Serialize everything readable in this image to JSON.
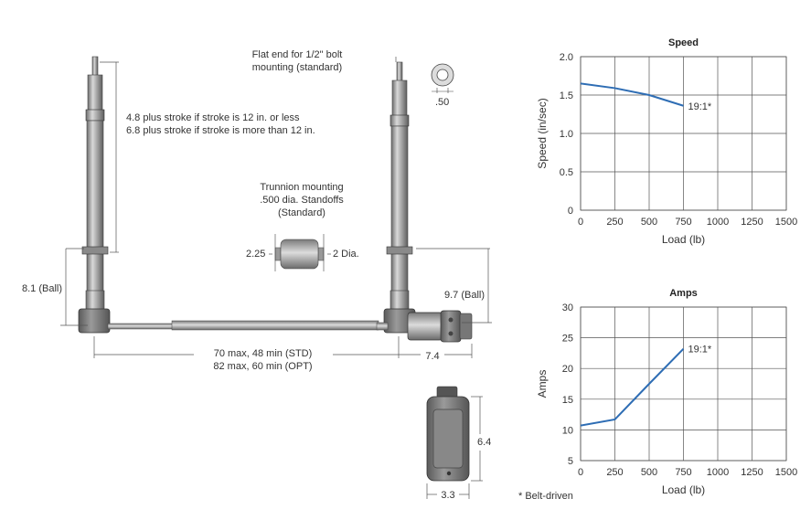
{
  "annotations": {
    "flat_end_line1": "Flat end for 1/2\" bolt",
    "flat_end_line2": "mounting (standard)",
    "bolt_dim": ".50",
    "stroke_line1": "4.8 plus stroke if stroke is 12 in. or less",
    "stroke_line2": "6.8 plus stroke if stroke is more than 12 in.",
    "trunnion_line1": "Trunnion mounting",
    "trunnion_line2": ".500 dia. Standoffs",
    "trunnion_line3": "(Standard)",
    "trunnion_width": "2.25",
    "trunnion_dia": "2 Dia.",
    "ball_left": "8.1 (Ball)",
    "ball_right": "9.7 (Ball)",
    "span_line1": "70 max, 48 min (STD)",
    "span_line2": "82 max, 60 min (OPT)",
    "motor_len": "7.4",
    "box_height": "6.4",
    "box_width": "3.3",
    "footnote": "* Belt-driven"
  },
  "colors": {
    "line": "#2e6db4",
    "grid": "#555555",
    "text": "#333333"
  },
  "chart_data": [
    {
      "type": "line",
      "title": "Speed",
      "xlabel": "Load (lb)",
      "ylabel": "Speed (in/sec)",
      "xlim": [
        0,
        1500
      ],
      "ylim": [
        0,
        2.0
      ],
      "x_ticks": [
        "0",
        "250",
        "500",
        "750",
        "1000",
        "1250",
        "1500"
      ],
      "y_ticks": [
        "0",
        "0.5",
        "1.0",
        "1.5",
        "2.0"
      ],
      "grid": true,
      "series": [
        {
          "name": "19:1*",
          "x": [
            0,
            250,
            500,
            750
          ],
          "y": [
            1.65,
            1.59,
            1.5,
            1.36
          ]
        }
      ]
    },
    {
      "type": "line",
      "title": "Amps",
      "xlabel": "Load (lb)",
      "ylabel": "Amps",
      "xlim": [
        0,
        1500
      ],
      "ylim": [
        5,
        30
      ],
      "x_ticks": [
        "0",
        "250",
        "500",
        "750",
        "1000",
        "1250",
        "1500"
      ],
      "y_ticks": [
        "5",
        "10",
        "15",
        "20",
        "25",
        "30"
      ],
      "grid": true,
      "series": [
        {
          "name": "19:1*",
          "x": [
            0,
            250,
            500,
            750
          ],
          "y": [
            10.7,
            11.7,
            17.5,
            23.2
          ]
        }
      ]
    }
  ]
}
